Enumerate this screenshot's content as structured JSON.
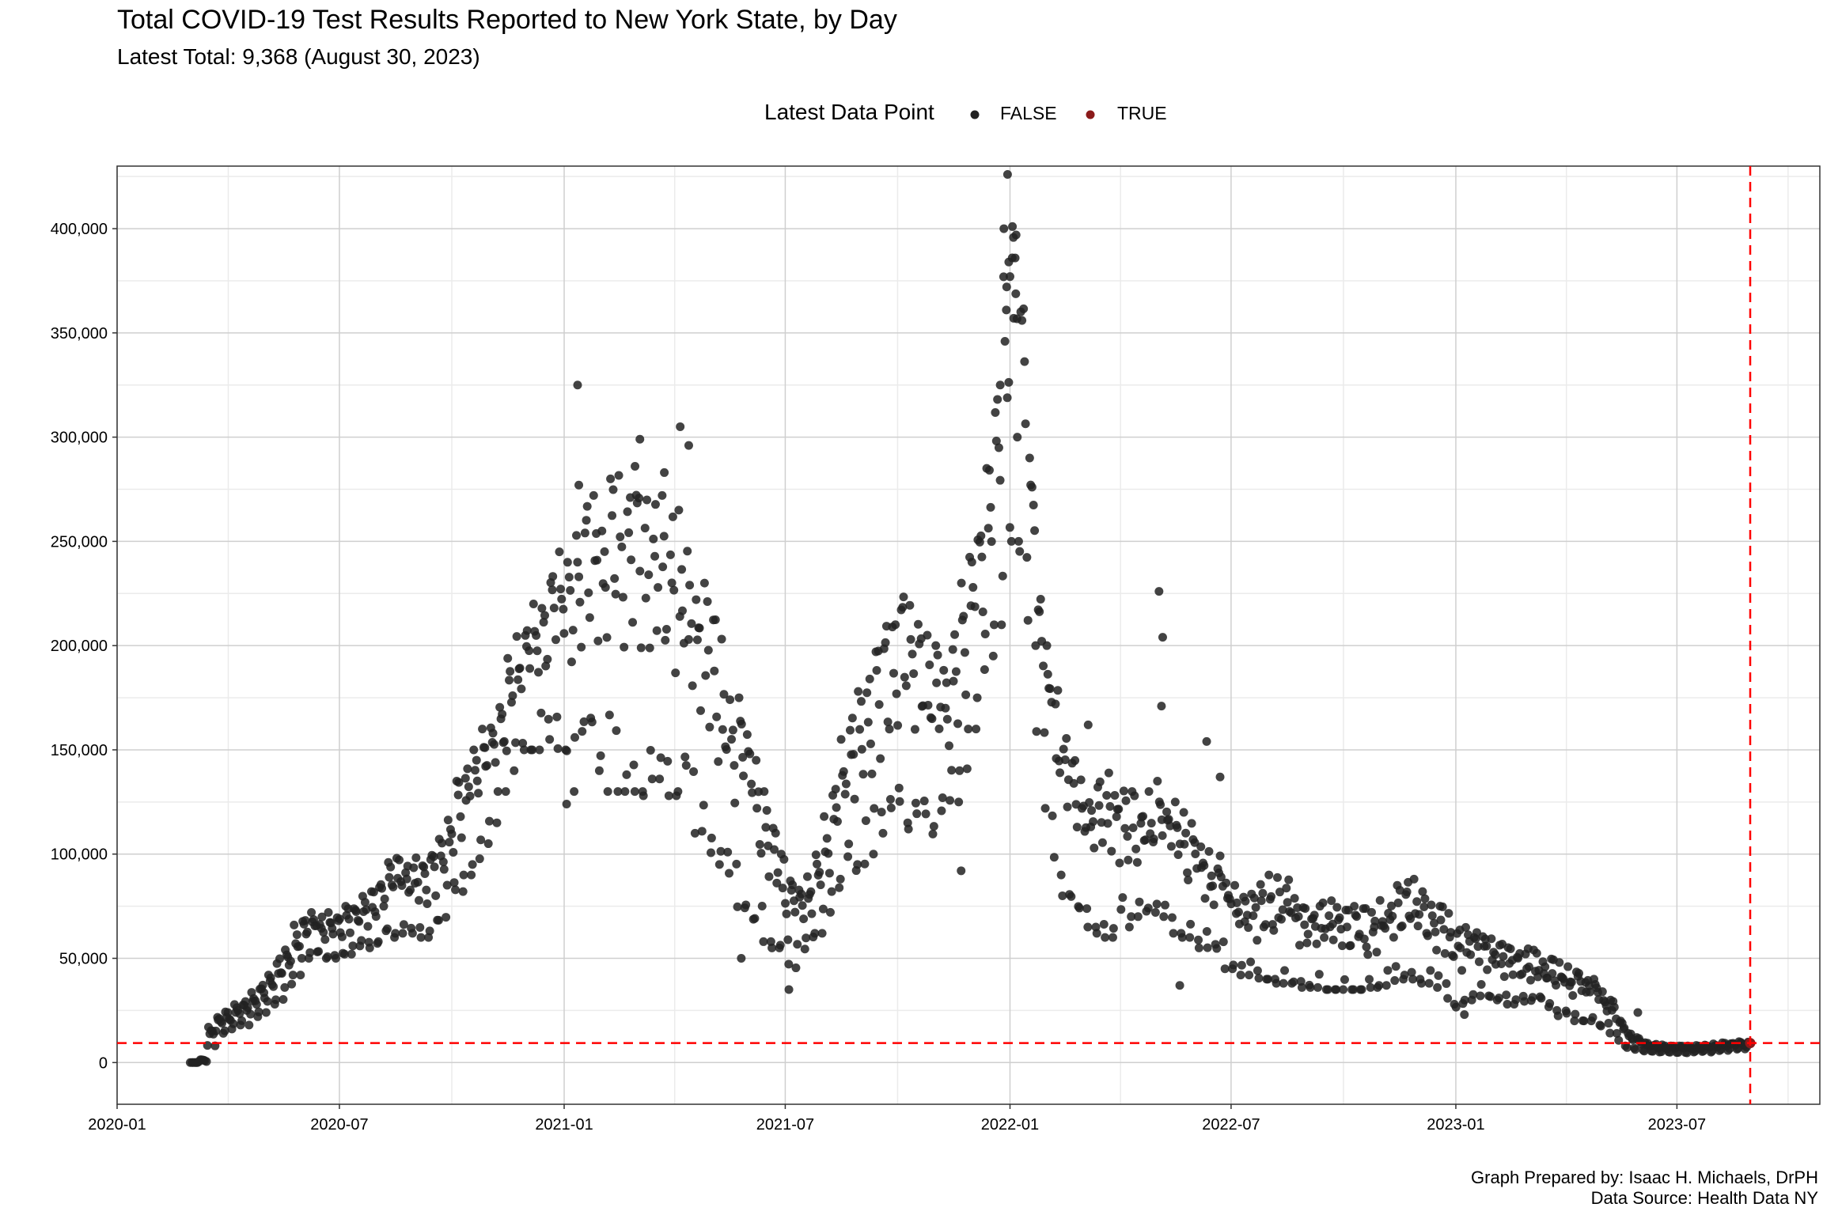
{
  "chart_data": {
    "type": "scatter",
    "title": "Total COVID-19 Test Results Reported to New York State, by Day",
    "subtitle": "Latest Total: 9,368 (August 30, 2023)",
    "xlabel": "",
    "ylabel": "",
    "legend": {
      "title": "Latest Data Point",
      "placement": "top",
      "entries": [
        {
          "label": "FALSE",
          "color": "#222222"
        },
        {
          "label": "TRUE",
          "color": "#8b1a1a"
        }
      ]
    },
    "x_range": [
      "2020-01-01",
      "2023-10-26"
    ],
    "ylim": [
      -20000,
      430000
    ],
    "x_ticks": [
      "2020-01",
      "2020-07",
      "2021-01",
      "2021-07",
      "2022-01",
      "2022-07",
      "2023-01",
      "2023-07"
    ],
    "y_ticks": [
      "0",
      "50,000",
      "100,000",
      "150,000",
      "200,000",
      "250,000",
      "300,000",
      "350,000",
      "400,000"
    ],
    "y_tick_values": [
      0,
      50000,
      100000,
      150000,
      200000,
      250000,
      300000,
      350000,
      400000
    ],
    "grid": true,
    "reference_lines": {
      "horizontal_y": 9368,
      "vertical_x": "2023-08-30",
      "color": "#ff0000",
      "style": "dashed"
    },
    "series": [
      {
        "name": "FALSE",
        "color": "#222222",
        "weekly_range": [
          [
            "2020-03-01",
            0,
            0
          ],
          [
            "2020-03-08",
            300,
            1500
          ],
          [
            "2020-03-15",
            8000,
            17000
          ],
          [
            "2020-03-22",
            14000,
            22000
          ],
          [
            "2020-03-29",
            15000,
            25000
          ],
          [
            "2020-04-05",
            18000,
            28000
          ],
          [
            "2020-04-12",
            18000,
            30000
          ],
          [
            "2020-04-19",
            22000,
            34000
          ],
          [
            "2020-04-26",
            24000,
            38000
          ],
          [
            "2020-05-03",
            28000,
            42000
          ],
          [
            "2020-05-10",
            30000,
            50000
          ],
          [
            "2020-05-17",
            36000,
            56000
          ],
          [
            "2020-05-24",
            42000,
            66000
          ],
          [
            "2020-05-31",
            50000,
            70000
          ],
          [
            "2020-06-07",
            52000,
            72000
          ],
          [
            "2020-06-14",
            50000,
            70000
          ],
          [
            "2020-06-21",
            48000,
            72000
          ],
          [
            "2020-06-28",
            50000,
            72000
          ],
          [
            "2020-07-05",
            52000,
            75000
          ],
          [
            "2020-07-12",
            55000,
            78000
          ],
          [
            "2020-07-19",
            55000,
            80000
          ],
          [
            "2020-07-26",
            55000,
            82000
          ],
          [
            "2020-08-02",
            58000,
            90000
          ],
          [
            "2020-08-09",
            60000,
            96000
          ],
          [
            "2020-08-16",
            62000,
            98000
          ],
          [
            "2020-08-23",
            62000,
            98000
          ],
          [
            "2020-08-30",
            62000,
            100000
          ],
          [
            "2020-09-06",
            60000,
            100000
          ],
          [
            "2020-09-13",
            62000,
            105000
          ],
          [
            "2020-09-20",
            68000,
            112000
          ],
          [
            "2020-09-27",
            80000,
            120000
          ],
          [
            "2020-10-04",
            82000,
            135000
          ],
          [
            "2020-10-11",
            90000,
            145000
          ],
          [
            "2020-10-18",
            95000,
            150000
          ],
          [
            "2020-10-25",
            105000,
            160000
          ],
          [
            "2020-11-01",
            115000,
            165000
          ],
          [
            "2020-11-08",
            130000,
            175000
          ],
          [
            "2020-11-15",
            140000,
            195000
          ],
          [
            "2020-11-22",
            145000,
            205000
          ],
          [
            "2020-11-29",
            150000,
            212000
          ],
          [
            "2020-12-06",
            150000,
            220000
          ],
          [
            "2020-12-13",
            155000,
            225000
          ],
          [
            "2020-12-20",
            155000,
            235000
          ],
          [
            "2020-12-27",
            150000,
            245000
          ],
          [
            "2021-01-03",
            130000,
            245000
          ],
          [
            "2021-01-10",
            140000,
            268000
          ],
          [
            "2021-01-17",
            150000,
            275000
          ],
          [
            "2021-01-24",
            140000,
            272000
          ],
          [
            "2021-01-31",
            130000,
            255000
          ],
          [
            "2021-02-07",
            140000,
            280000
          ],
          [
            "2021-02-14",
            130000,
            290000
          ],
          [
            "2021-02-21",
            135000,
            295000
          ],
          [
            "2021-02-28",
            130000,
            290000
          ],
          [
            "2021-03-07",
            128000,
            285000
          ],
          [
            "2021-03-14",
            130000,
            280000
          ],
          [
            "2021-03-21",
            132000,
            272000
          ],
          [
            "2021-03-28",
            128000,
            268000
          ],
          [
            "2021-04-04",
            130000,
            265000
          ],
          [
            "2021-04-11",
            118000,
            250000
          ],
          [
            "2021-04-18",
            110000,
            240000
          ],
          [
            "2021-04-25",
            100000,
            230000
          ],
          [
            "2021-05-02",
            95000,
            215000
          ],
          [
            "2021-05-09",
            90000,
            205000
          ],
          [
            "2021-05-16",
            80000,
            190000
          ],
          [
            "2021-05-23",
            72000,
            175000
          ],
          [
            "2021-05-30",
            68000,
            160000
          ],
          [
            "2021-06-06",
            62000,
            145000
          ],
          [
            "2021-06-13",
            58000,
            130000
          ],
          [
            "2021-06-20",
            55000,
            115000
          ],
          [
            "2021-06-27",
            52000,
            100000
          ],
          [
            "2021-07-04",
            45000,
            92000
          ],
          [
            "2021-07-11",
            50000,
            88000
          ],
          [
            "2021-07-18",
            55000,
            90000
          ],
          [
            "2021-07-25",
            62000,
            100000
          ],
          [
            "2021-08-01",
            72000,
            118000
          ],
          [
            "2021-08-08",
            82000,
            138000
          ],
          [
            "2021-08-15",
            88000,
            155000
          ],
          [
            "2021-08-22",
            92000,
            168000
          ],
          [
            "2021-08-29",
            95000,
            178000
          ],
          [
            "2021-09-05",
            100000,
            185000
          ],
          [
            "2021-09-12",
            105000,
            200000
          ],
          [
            "2021-09-19",
            110000,
            215000
          ],
          [
            "2021-09-26",
            115000,
            230000
          ],
          [
            "2021-10-03",
            115000,
            232000
          ],
          [
            "2021-10-10",
            112000,
            225000
          ],
          [
            "2021-10-17",
            110000,
            215000
          ],
          [
            "2021-10-24",
            108000,
            205000
          ],
          [
            "2021-10-31",
            110000,
            200000
          ],
          [
            "2021-11-07",
            115000,
            205000
          ],
          [
            "2021-11-14",
            125000,
            215000
          ],
          [
            "2021-11-21",
            140000,
            230000
          ],
          [
            "2021-11-28",
            160000,
            250000
          ],
          [
            "2021-12-05",
            175000,
            265000
          ],
          [
            "2021-12-12",
            195000,
            285000
          ],
          [
            "2021-12-19",
            210000,
            330000
          ],
          [
            "2021-12-26",
            230000,
            390000
          ],
          [
            "2022-01-02",
            250000,
            415000
          ],
          [
            "2022-01-09",
            230000,
            370000
          ],
          [
            "2022-01-16",
            200000,
            290000
          ],
          [
            "2022-01-23",
            150000,
            230000
          ],
          [
            "2022-01-30",
            110000,
            200000
          ],
          [
            "2022-02-06",
            90000,
            180000
          ],
          [
            "2022-02-13",
            80000,
            160000
          ],
          [
            "2022-02-20",
            72000,
            145000
          ],
          [
            "2022-02-27",
            68000,
            138000
          ],
          [
            "2022-03-06",
            65000,
            135000
          ],
          [
            "2022-03-13",
            62000,
            135000
          ],
          [
            "2022-03-20",
            60000,
            140000
          ],
          [
            "2022-03-27",
            62000,
            140000
          ],
          [
            "2022-04-03",
            65000,
            138000
          ],
          [
            "2022-04-10",
            70000,
            130000
          ],
          [
            "2022-04-17",
            70000,
            125000
          ],
          [
            "2022-04-24",
            72000,
            130000
          ],
          [
            "2022-05-01",
            70000,
            135000
          ],
          [
            "2022-05-08",
            65000,
            130000
          ],
          [
            "2022-05-15",
            62000,
            125000
          ],
          [
            "2022-05-22",
            60000,
            120000
          ],
          [
            "2022-05-29",
            58000,
            115000
          ],
          [
            "2022-06-05",
            55000,
            110000
          ],
          [
            "2022-06-12",
            52000,
            105000
          ],
          [
            "2022-06-19",
            50000,
            100000
          ],
          [
            "2022-06-26",
            45000,
            90000
          ],
          [
            "2022-07-03",
            42000,
            85000
          ],
          [
            "2022-07-10",
            42000,
            82000
          ],
          [
            "2022-07-17",
            40000,
            85000
          ],
          [
            "2022-07-24",
            40000,
            88000
          ],
          [
            "2022-07-31",
            40000,
            90000
          ],
          [
            "2022-08-07",
            38000,
            90000
          ],
          [
            "2022-08-14",
            38000,
            88000
          ],
          [
            "2022-08-21",
            36000,
            80000
          ],
          [
            "2022-08-28",
            36000,
            76000
          ],
          [
            "2022-09-04",
            36000,
            75000
          ],
          [
            "2022-09-11",
            35000,
            78000
          ],
          [
            "2022-09-18",
            35000,
            78000
          ],
          [
            "2022-09-25",
            35000,
            76000
          ],
          [
            "2022-10-02",
            35000,
            75000
          ],
          [
            "2022-10-09",
            35000,
            75000
          ],
          [
            "2022-10-16",
            35000,
            75000
          ],
          [
            "2022-10-23",
            36000,
            76000
          ],
          [
            "2022-10-30",
            37000,
            78000
          ],
          [
            "2022-11-06",
            38000,
            80000
          ],
          [
            "2022-11-13",
            40000,
            85000
          ],
          [
            "2022-11-20",
            42000,
            90000
          ],
          [
            "2022-11-27",
            40000,
            88000
          ],
          [
            "2022-12-04",
            38000,
            82000
          ],
          [
            "2022-12-11",
            36000,
            78000
          ],
          [
            "2022-12-18",
            34000,
            75000
          ],
          [
            "2022-12-25",
            28000,
            72000
          ],
          [
            "2023-01-01",
            26000,
            70000
          ],
          [
            "2023-01-08",
            30000,
            68000
          ],
          [
            "2023-01-15",
            32000,
            65000
          ],
          [
            "2023-01-22",
            32000,
            62000
          ],
          [
            "2023-01-29",
            30000,
            60000
          ],
          [
            "2023-02-05",
            30000,
            58000
          ],
          [
            "2023-02-12",
            28000,
            56000
          ],
          [
            "2023-02-19",
            28000,
            55000
          ],
          [
            "2023-02-26",
            28000,
            55000
          ],
          [
            "2023-03-05",
            28000,
            54000
          ],
          [
            "2023-03-12",
            26000,
            52000
          ],
          [
            "2023-03-19",
            25000,
            50000
          ],
          [
            "2023-03-26",
            22000,
            48000
          ],
          [
            "2023-04-02",
            20000,
            46000
          ],
          [
            "2023-04-09",
            20000,
            44000
          ],
          [
            "2023-04-16",
            20000,
            42000
          ],
          [
            "2023-04-23",
            18000,
            40000
          ],
          [
            "2023-04-30",
            16000,
            34000
          ],
          [
            "2023-05-07",
            14000,
            30000
          ],
          [
            "2023-05-14",
            8000,
            22000
          ],
          [
            "2023-05-21",
            7000,
            14000
          ],
          [
            "2023-05-28",
            6000,
            12000
          ],
          [
            "2023-06-04",
            5500,
            10000
          ],
          [
            "2023-06-11",
            5000,
            9000
          ],
          [
            "2023-06-18",
            5000,
            8500
          ],
          [
            "2023-06-25",
            4800,
            8000
          ],
          [
            "2023-07-02",
            4500,
            8000
          ],
          [
            "2023-07-09",
            4500,
            8000
          ],
          [
            "2023-07-16",
            4800,
            8200
          ],
          [
            "2023-07-23",
            5000,
            8500
          ],
          [
            "2023-07-30",
            5500,
            9000
          ],
          [
            "2023-08-06",
            5800,
            9500
          ],
          [
            "2023-08-13",
            6000,
            9800
          ],
          [
            "2023-08-20",
            6500,
            10200
          ],
          [
            "2023-08-27",
            7000,
            10000
          ]
        ],
        "outliers": [
          [
            "2021-01-12",
            325000
          ],
          [
            "2021-04-06",
            305000
          ],
          [
            "2021-04-13",
            296000
          ],
          [
            "2021-03-04",
            299000
          ],
          [
            "2021-02-28",
            286000
          ],
          [
            "2021-03-24",
            283000
          ],
          [
            "2021-01-13",
            277000
          ],
          [
            "2021-12-30",
            426000
          ],
          [
            "2022-01-03",
            401000
          ],
          [
            "2022-01-06",
            397000
          ],
          [
            "2021-12-27",
            400000
          ],
          [
            "2021-12-31",
            384000
          ],
          [
            "2022-01-01",
            377000
          ],
          [
            "2021-12-29",
            361000
          ],
          [
            "2022-01-04",
            357000
          ],
          [
            "2021-12-24",
            325000
          ],
          [
            "2022-01-07",
            300000
          ],
          [
            "2022-05-03",
            226000
          ],
          [
            "2022-05-06",
            204000
          ],
          [
            "2022-05-05",
            171000
          ],
          [
            "2022-06-11",
            154000
          ],
          [
            "2021-01-03",
            124000
          ],
          [
            "2021-07-04",
            35000
          ],
          [
            "2021-11-22",
            92000
          ],
          [
            "2022-06-22",
            137000
          ],
          [
            "2022-03-06",
            162000
          ],
          [
            "2023-01-08",
            23000
          ],
          [
            "2023-05-30",
            24000
          ],
          [
            "2022-05-20",
            37000
          ],
          [
            "2021-05-26",
            50000
          ]
        ]
      },
      {
        "name": "TRUE",
        "color": "#8b1a1a",
        "points": [
          [
            "2023-08-30",
            9368
          ]
        ]
      }
    ]
  }
}
